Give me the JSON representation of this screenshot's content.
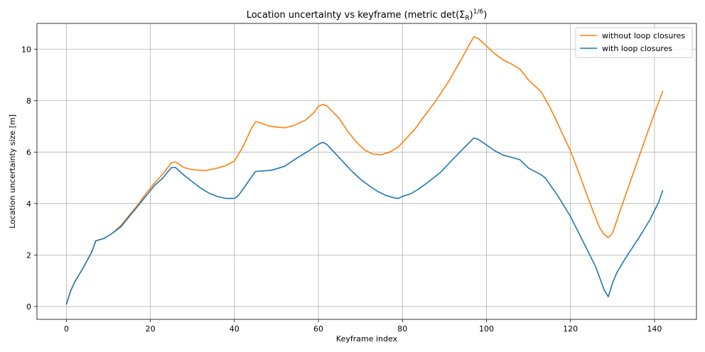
{
  "chart_data": {
    "type": "line",
    "title": "Location uncertainty vs keyframe (metric det(Σ_R)^1/6)",
    "title_main": "Location uncertainty vs keyframe (metric det(Σ",
    "title_sub": "R",
    "title_mid": ")",
    "title_sup": "1/6",
    "title_end": ")",
    "xlabel": "Keyframe index",
    "ylabel": "Location uncertainty size  [m]",
    "xlim": [
      -7,
      150
    ],
    "ylim": [
      -0.5,
      11.0
    ],
    "xticks": [
      0,
      20,
      40,
      60,
      80,
      100,
      120,
      140
    ],
    "yticks": [
      0,
      2,
      4,
      6,
      8,
      10
    ],
    "grid": true,
    "legend": "top-right",
    "series": [
      {
        "name": "without loop closures",
        "color": "#ff7f0e",
        "points": [
          [
            0,
            0.08
          ],
          [
            1,
            0.6
          ],
          [
            2,
            0.95
          ],
          [
            4,
            1.5
          ],
          [
            6,
            2.1
          ],
          [
            7,
            2.55
          ],
          [
            9,
            2.65
          ],
          [
            11,
            2.85
          ],
          [
            13,
            3.15
          ],
          [
            15,
            3.55
          ],
          [
            17,
            3.95
          ],
          [
            19,
            4.4
          ],
          [
            21,
            4.8
          ],
          [
            23,
            5.15
          ],
          [
            25,
            5.58
          ],
          [
            26,
            5.62
          ],
          [
            28,
            5.4
          ],
          [
            30,
            5.32
          ],
          [
            33,
            5.28
          ],
          [
            36,
            5.38
          ],
          [
            38,
            5.48
          ],
          [
            40,
            5.65
          ],
          [
            42,
            6.2
          ],
          [
            44,
            6.9
          ],
          [
            45,
            7.18
          ],
          [
            46,
            7.15
          ],
          [
            48,
            7.02
          ],
          [
            50,
            6.97
          ],
          [
            52,
            6.95
          ],
          [
            54,
            7.02
          ],
          [
            57,
            7.25
          ],
          [
            59,
            7.55
          ],
          [
            60,
            7.78
          ],
          [
            61,
            7.85
          ],
          [
            62,
            7.8
          ],
          [
            65,
            7.3
          ],
          [
            67,
            6.8
          ],
          [
            69,
            6.4
          ],
          [
            71,
            6.08
          ],
          [
            73,
            5.92
          ],
          [
            75,
            5.9
          ],
          [
            77,
            6.0
          ],
          [
            79,
            6.2
          ],
          [
            81,
            6.55
          ],
          [
            83,
            6.9
          ],
          [
            85,
            7.35
          ],
          [
            88,
            8.0
          ],
          [
            91,
            8.75
          ],
          [
            94,
            9.6
          ],
          [
            96,
            10.2
          ],
          [
            97,
            10.48
          ],
          [
            98,
            10.42
          ],
          [
            100,
            10.12
          ],
          [
            102,
            9.82
          ],
          [
            104,
            9.58
          ],
          [
            106,
            9.42
          ],
          [
            108,
            9.22
          ],
          [
            110,
            8.8
          ],
          [
            113,
            8.35
          ],
          [
            115,
            7.78
          ],
          [
            117,
            7.1
          ],
          [
            120,
            6.05
          ],
          [
            122,
            5.2
          ],
          [
            124,
            4.3
          ],
          [
            126,
            3.45
          ],
          [
            127,
            3.05
          ],
          [
            128,
            2.8
          ],
          [
            129,
            2.68
          ],
          [
            130,
            2.85
          ],
          [
            132,
            3.8
          ],
          [
            135,
            5.2
          ],
          [
            138,
            6.6
          ],
          [
            140,
            7.5
          ],
          [
            142,
            8.38
          ]
        ]
      },
      {
        "name": "with loop closures",
        "color": "#1f77b4",
        "points": [
          [
            0,
            0.08
          ],
          [
            1,
            0.6
          ],
          [
            2,
            0.95
          ],
          [
            4,
            1.5
          ],
          [
            6,
            2.1
          ],
          [
            7,
            2.55
          ],
          [
            9,
            2.65
          ],
          [
            11,
            2.85
          ],
          [
            13,
            3.1
          ],
          [
            15,
            3.5
          ],
          [
            17,
            3.9
          ],
          [
            19,
            4.3
          ],
          [
            21,
            4.7
          ],
          [
            23,
            5.0
          ],
          [
            25,
            5.4
          ],
          [
            26,
            5.4
          ],
          [
            28,
            5.1
          ],
          [
            30,
            4.85
          ],
          [
            32,
            4.6
          ],
          [
            34,
            4.4
          ],
          [
            36,
            4.27
          ],
          [
            38,
            4.2
          ],
          [
            40,
            4.2
          ],
          [
            41,
            4.32
          ],
          [
            43,
            4.78
          ],
          [
            45,
            5.25
          ],
          [
            47,
            5.27
          ],
          [
            49,
            5.3
          ],
          [
            52,
            5.45
          ],
          [
            55,
            5.78
          ],
          [
            58,
            6.08
          ],
          [
            60,
            6.3
          ],
          [
            61,
            6.38
          ],
          [
            62,
            6.3
          ],
          [
            64,
            5.95
          ],
          [
            66,
            5.6
          ],
          [
            68,
            5.25
          ],
          [
            70,
            4.95
          ],
          [
            72,
            4.7
          ],
          [
            74,
            4.48
          ],
          [
            76,
            4.32
          ],
          [
            78,
            4.22
          ],
          [
            79,
            4.2
          ],
          [
            80,
            4.28
          ],
          [
            82,
            4.38
          ],
          [
            84,
            4.58
          ],
          [
            86,
            4.82
          ],
          [
            89,
            5.2
          ],
          [
            92,
            5.72
          ],
          [
            95,
            6.22
          ],
          [
            97,
            6.55
          ],
          [
            98,
            6.5
          ],
          [
            100,
            6.28
          ],
          [
            102,
            6.05
          ],
          [
            104,
            5.88
          ],
          [
            106,
            5.8
          ],
          [
            108,
            5.7
          ],
          [
            110,
            5.38
          ],
          [
            113,
            5.12
          ],
          [
            114,
            5.0
          ],
          [
            117,
            4.3
          ],
          [
            120,
            3.5
          ],
          [
            122,
            2.85
          ],
          [
            124,
            2.2
          ],
          [
            126,
            1.55
          ],
          [
            127,
            1.1
          ],
          [
            128,
            0.65
          ],
          [
            129,
            0.38
          ],
          [
            130,
            0.9
          ],
          [
            131,
            1.3
          ],
          [
            133,
            1.85
          ],
          [
            135,
            2.35
          ],
          [
            137,
            2.85
          ],
          [
            139,
            3.4
          ],
          [
            141,
            4.05
          ],
          [
            142,
            4.52
          ]
        ]
      }
    ]
  }
}
